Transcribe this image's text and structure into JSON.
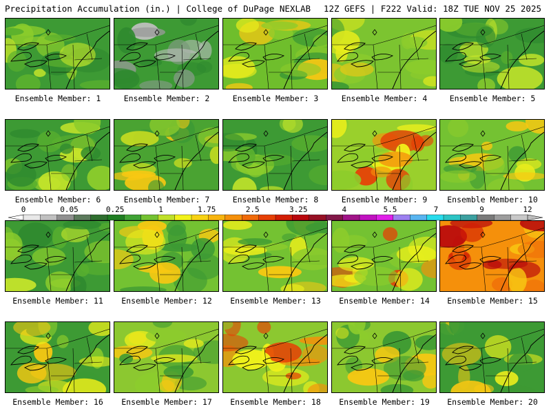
{
  "header": {
    "left_title": "Precipitation Accumulation (in.) | College of DuPage NEXLAB",
    "right_title": "12Z GEFS | F222 Valid: 18Z TUE NOV 25 2025"
  },
  "colorbar": {
    "tick_labels": [
      "0",
      "0.05",
      "0.25",
      "1",
      "1.75",
      "2.5",
      "3.25",
      "4",
      "5.5",
      "7",
      "9",
      "12"
    ],
    "colors": [
      "#e8e8e8",
      "#c0c0c0",
      "#909090",
      "#5c7a5c",
      "#2f6e2f",
      "#1f7d22",
      "#3fa235",
      "#74c232",
      "#bfe02a",
      "#f2f21a",
      "#f8d213",
      "#f8b40e",
      "#f5900b",
      "#f06a09",
      "#e64006",
      "#d21e04",
      "#b8060c",
      "#961024",
      "#821848",
      "#a01488",
      "#c012c0",
      "#e020e8",
      "#9c80f0",
      "#58b4f0",
      "#28dcec",
      "#2cc4c4",
      "#3ca0a0",
      "#7a7a7a",
      "#9c9c9c",
      "#c8c8c8"
    ]
  },
  "panels": [
    {
      "label": "Ensemble Member: 1",
      "base": "#3d9a34",
      "tone": "green"
    },
    {
      "label": "Ensemble Member: 2",
      "base": "#3d9a34",
      "tone": "grey"
    },
    {
      "label": "Ensemble Member: 3",
      "base": "#6fbe2c",
      "tone": "mixed"
    },
    {
      "label": "Ensemble Member: 4",
      "base": "#7cc430",
      "tone": "mixed"
    },
    {
      "label": "Ensemble Member: 5",
      "base": "#3d9a34",
      "tone": "green"
    },
    {
      "label": "Ensemble Member: 6",
      "base": "#3d9a34",
      "tone": "green"
    },
    {
      "label": "Ensemble Member: 7",
      "base": "#4aa332",
      "tone": "mixed"
    },
    {
      "label": "Ensemble Member: 8",
      "base": "#3d9a34",
      "tone": "green"
    },
    {
      "label": "Ensemble Member: 9",
      "base": "#9ad02c",
      "tone": "hot"
    },
    {
      "label": "Ensemble Member: 10",
      "base": "#74c232",
      "tone": "mixed"
    },
    {
      "label": "Ensemble Member: 11",
      "base": "#3d9a34",
      "tone": "green"
    },
    {
      "label": "Ensemble Member: 12",
      "base": "#74c232",
      "tone": "mixed"
    },
    {
      "label": "Ensemble Member: 13",
      "base": "#74c232",
      "tone": "mixed"
    },
    {
      "label": "Ensemble Member: 14",
      "base": "#74c232",
      "tone": "hot"
    },
    {
      "label": "Ensemble Member: 15",
      "base": "#f5900b",
      "tone": "veryhot"
    },
    {
      "label": "Ensemble Member: 16",
      "base": "#3d9a34",
      "tone": "mixed"
    },
    {
      "label": "Ensemble Member: 17",
      "base": "#8cc830",
      "tone": "mixed"
    },
    {
      "label": "Ensemble Member: 18",
      "base": "#8cc830",
      "tone": "hot"
    },
    {
      "label": "Ensemble Member: 19",
      "base": "#8cc830",
      "tone": "mixed"
    },
    {
      "label": "Ensemble Member: 20",
      "base": "#3d9a34",
      "tone": "mixed"
    }
  ]
}
